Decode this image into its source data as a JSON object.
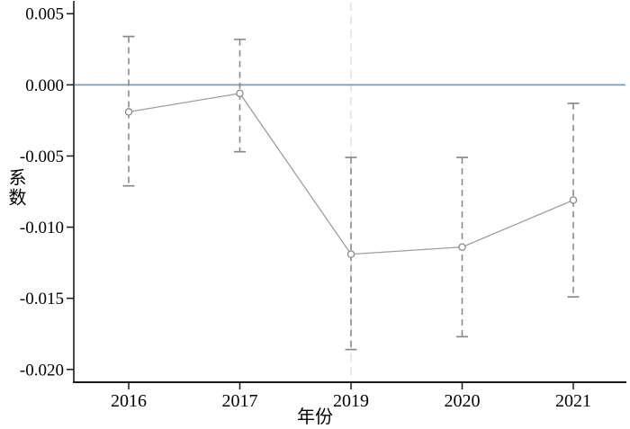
{
  "figure": {
    "background": "#ffffff"
  },
  "chart_data": {
    "type": "line",
    "subtype": "coefficient-plot-with-confidence-intervals",
    "title": "",
    "xlabel": "年份",
    "ylabel": "系数",
    "categories": [
      "2016",
      "2017",
      "2019",
      "2020",
      "2021"
    ],
    "series": [
      {
        "name": "系数",
        "values": [
          -0.0019,
          -0.0006,
          -0.0119,
          -0.0114,
          -0.0081
        ],
        "ci_low": [
          -0.0071,
          -0.0047,
          -0.0186,
          -0.0177,
          -0.0149
        ],
        "ci_high": [
          0.0034,
          0.0032,
          -0.0051,
          -0.0051,
          -0.0013
        ]
      }
    ],
    "y_ticks": [
      0.005,
      0.0,
      -0.005,
      -0.01,
      -0.015,
      -0.02
    ],
    "y_tick_labels": [
      "0.005",
      "0.000",
      "-0.005",
      "-0.010",
      "-0.015",
      "-0.020"
    ],
    "ylim": [
      -0.0209,
      0.0059
    ],
    "reference_lines": {
      "horizontal_zero_line": 0,
      "vertical_line_at_category": "2019"
    },
    "grid": false,
    "legend": false,
    "marker": "open-circle",
    "error_bar_style": "dashed-with-caps"
  },
  "colors": {
    "zero_line": "#7d9cb6",
    "series_line": "#9d9d9d",
    "error_bar": "#8a8a8a",
    "marker_stroke": "#8a8a8a",
    "marker_fill": "#ffffff",
    "vertical_ref_line": "#dde4df",
    "axis": "#1a1a1a",
    "text": "#000000",
    "background": "#ffffff"
  }
}
